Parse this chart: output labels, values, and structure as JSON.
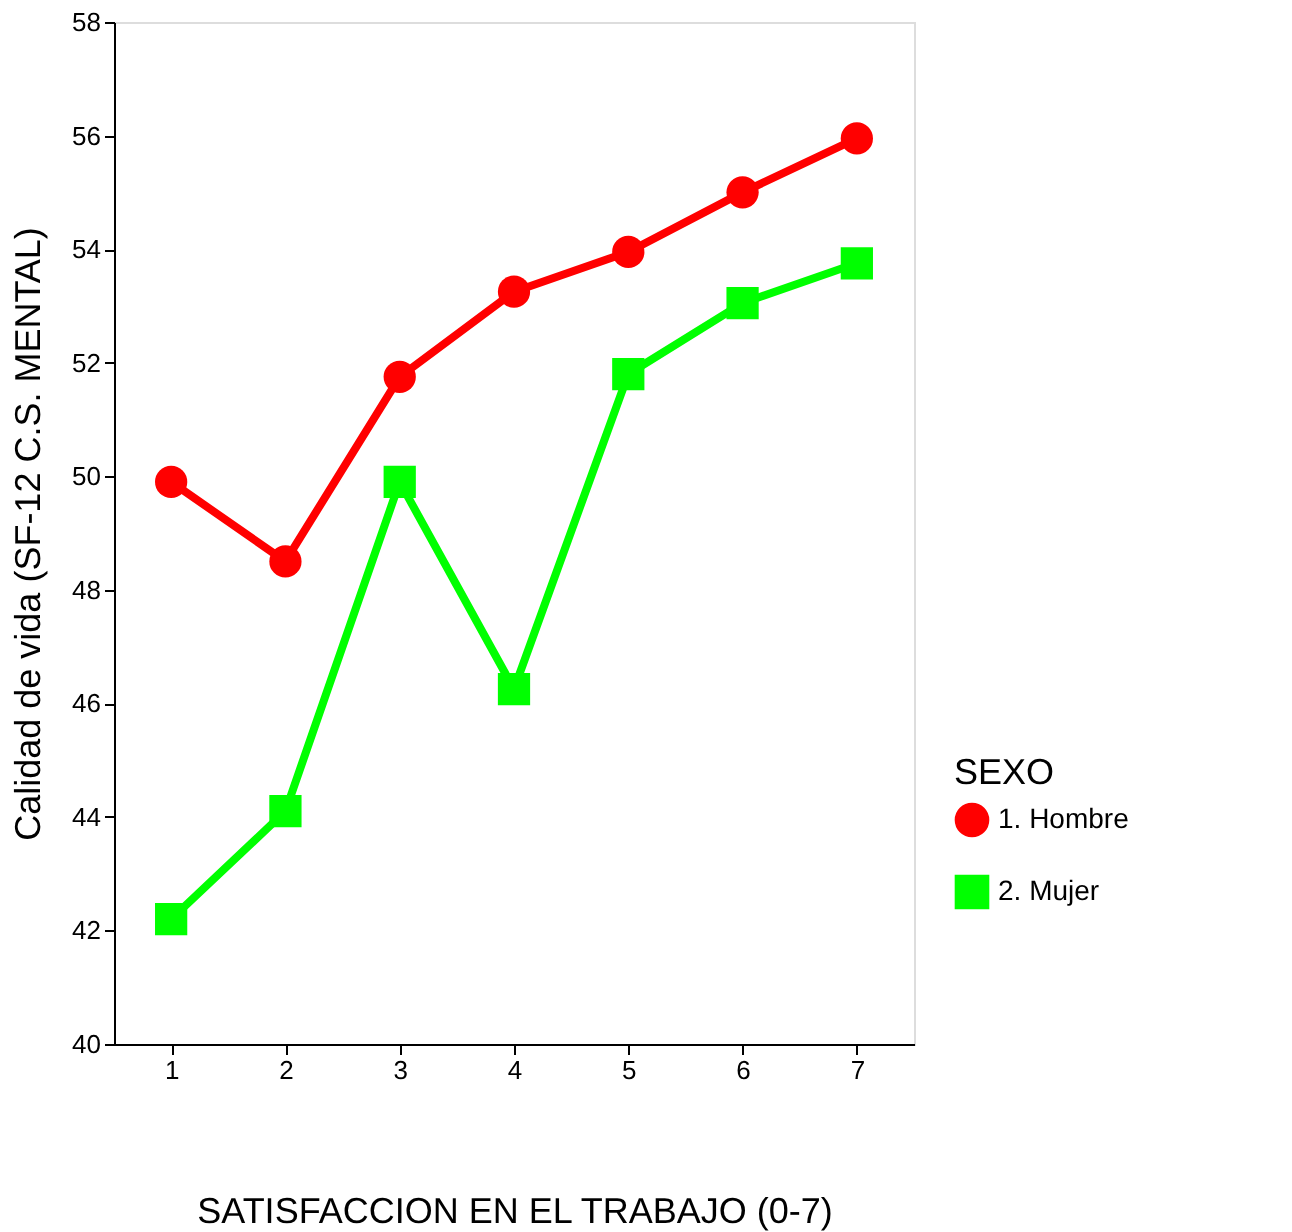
{
  "chart_data": {
    "type": "line",
    "xlabel": "SATISFACCION EN EL TRABAJO (0-7)",
    "ylabel": "Calidad de vida (SF-12 C.S. MENTAL)",
    "legend_title": "SEXO",
    "categories": [
      "1",
      "2",
      "3",
      "4",
      "5",
      "6",
      "7"
    ],
    "series": [
      {
        "name": "1. Hombre",
        "color": "#ff0000",
        "marker": "circle",
        "values": [
          49.9,
          48.5,
          51.75,
          53.25,
          53.95,
          55.0,
          55.95
        ]
      },
      {
        "name": "2. Mujer",
        "color": "#00ff00",
        "marker": "square",
        "values": [
          42.2,
          44.1,
          49.9,
          46.25,
          51.8,
          53.05,
          53.75
        ]
      }
    ],
    "ylim": [
      40,
      58
    ],
    "yticks": [
      40,
      42,
      44,
      46,
      48,
      50,
      52,
      54,
      56,
      58
    ],
    "grid": false,
    "legend": "bottom right",
    "line_style": "solid"
  }
}
